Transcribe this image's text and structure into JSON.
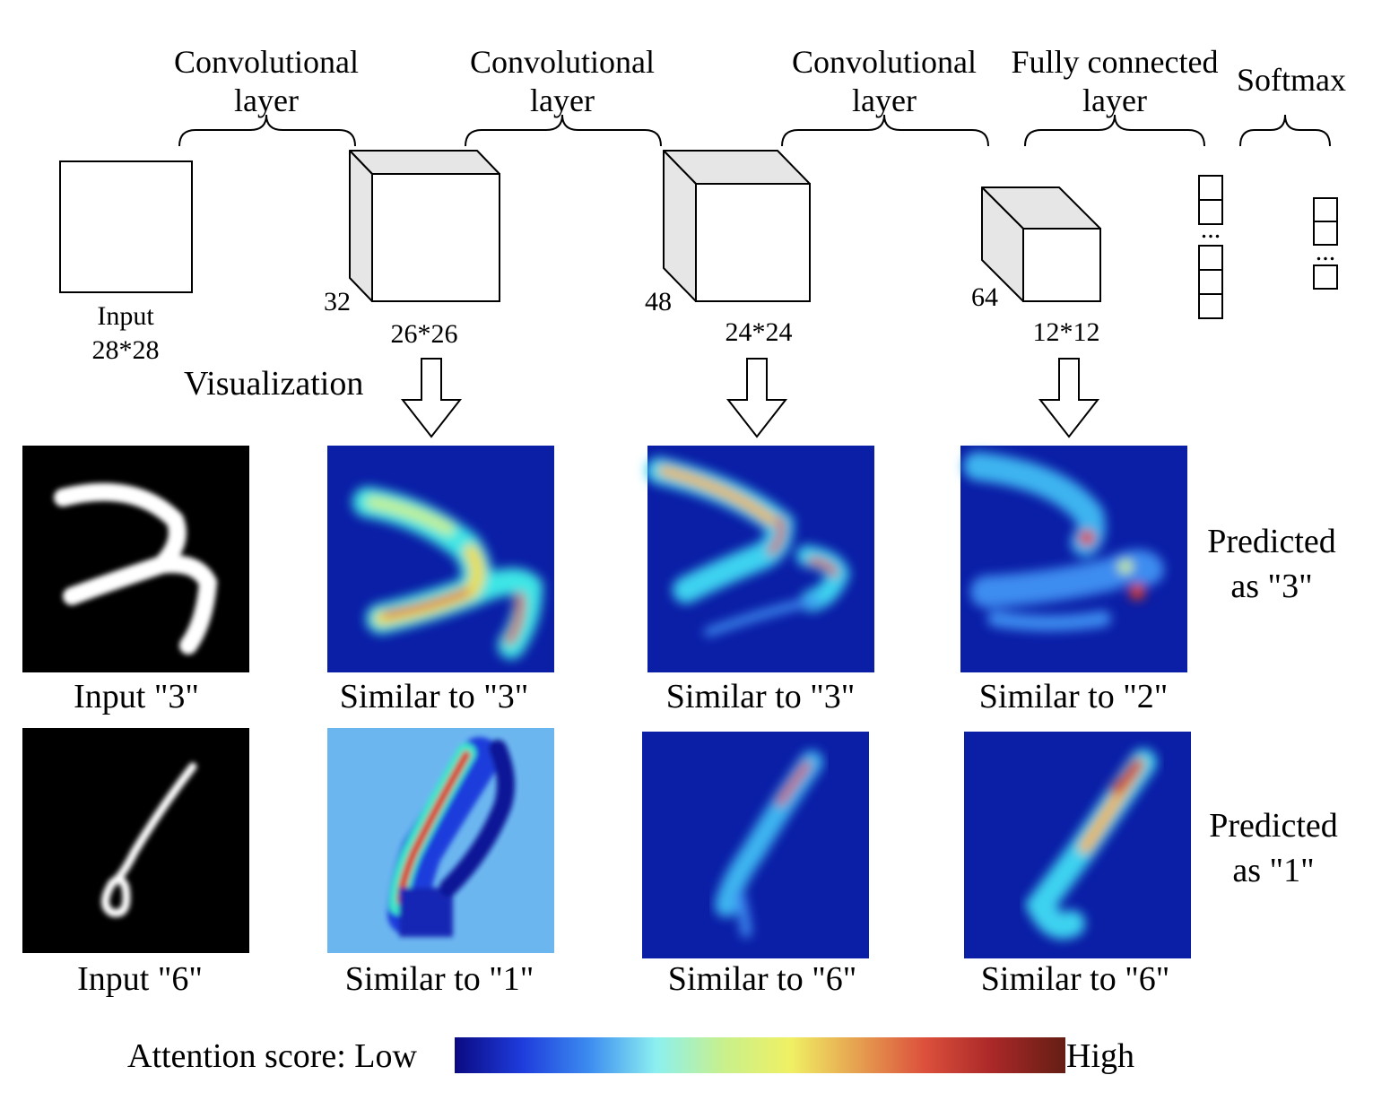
{
  "layers": {
    "conv1": "Convolutional layer",
    "conv2": "Convolutional layer",
    "conv3": "Convolutional layer",
    "fc": "Fully connected layer",
    "softmax": "Softmax"
  },
  "layer_lines": {
    "conv": [
      "Convolutional",
      "layer"
    ],
    "fc": [
      "Fully connected",
      "layer"
    ]
  },
  "input_block": {
    "label": "Input",
    "size": "28*28"
  },
  "feature_maps": [
    {
      "depth": "32",
      "size": "26*26"
    },
    {
      "depth": "48",
      "size": "24*24"
    },
    {
      "depth": "64",
      "size": "12*12"
    }
  ],
  "ellipsis": "...",
  "visualization_label": "Visualization",
  "rows": [
    {
      "input_caption": "Input \"3\"",
      "captions": [
        "Similar to \"3\"",
        "Similar to \"3\"",
        "Similar to \"2\""
      ],
      "prediction": [
        "Predicted",
        "as \"3\""
      ]
    },
    {
      "input_caption": "Input \"6\"",
      "captions": [
        "Similar to \"1\"",
        "Similar to \"6\"",
        "Similar to \"6\""
      ],
      "prediction": [
        "Predicted",
        "as \"1\""
      ]
    }
  ],
  "colorbar": {
    "label": "Attention score: Low",
    "high": "High"
  },
  "colors": {
    "heat_background": "#0a1ea6",
    "heat_light_background": "#6cb6f0",
    "jet": [
      "#0a0a82",
      "#1e3cdc",
      "#3c8cf0",
      "#8cf0f0",
      "#c8f08c",
      "#f0f064",
      "#e6a050",
      "#dc503c",
      "#aa2828",
      "#641e14"
    ]
  }
}
